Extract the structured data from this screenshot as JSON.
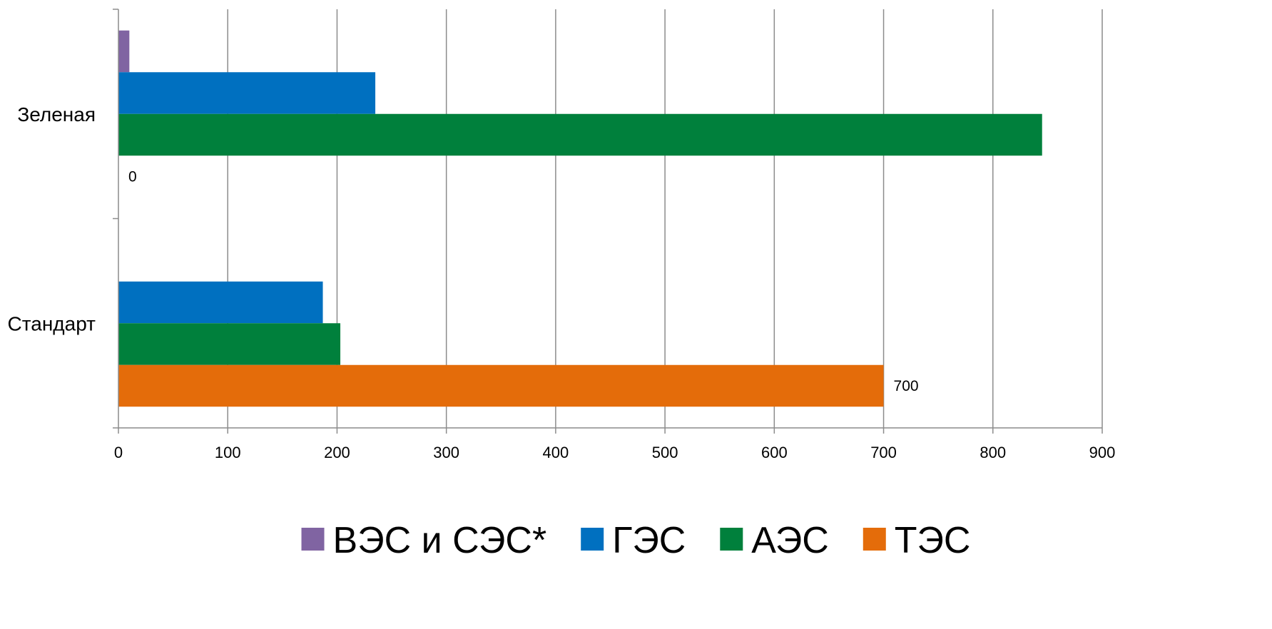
{
  "chart_data": {
    "type": "bar",
    "orientation": "horizontal",
    "categories": [
      "Зеленая",
      "Стандарт"
    ],
    "series": [
      {
        "name": "ВЭС и СЭС*",
        "color": "#8064A2",
        "values": [
          10,
          0
        ]
      },
      {
        "name": "ГЭС",
        "color": "#0070C0",
        "values": [
          235,
          187
        ]
      },
      {
        "name": "АЭС",
        "color": "#00803C",
        "values": [
          845,
          203
        ]
      },
      {
        "name": "ТЭС",
        "color": "#E46C0A",
        "values": [
          0,
          700
        ]
      }
    ],
    "data_labels": [
      {
        "category": "Зеленая",
        "series": "ТЭС",
        "text": "0"
      },
      {
        "category": "Стандарт",
        "series": "ТЭС",
        "text": "700"
      }
    ],
    "x_ticks": [
      "0",
      "100",
      "200",
      "300",
      "400",
      "500",
      "600",
      "700",
      "800",
      "900"
    ],
    "xlim": [
      0,
      900
    ],
    "grid": "vertical",
    "legend_position": "bottom",
    "title": "",
    "xlabel": "",
    "ylabel": ""
  }
}
